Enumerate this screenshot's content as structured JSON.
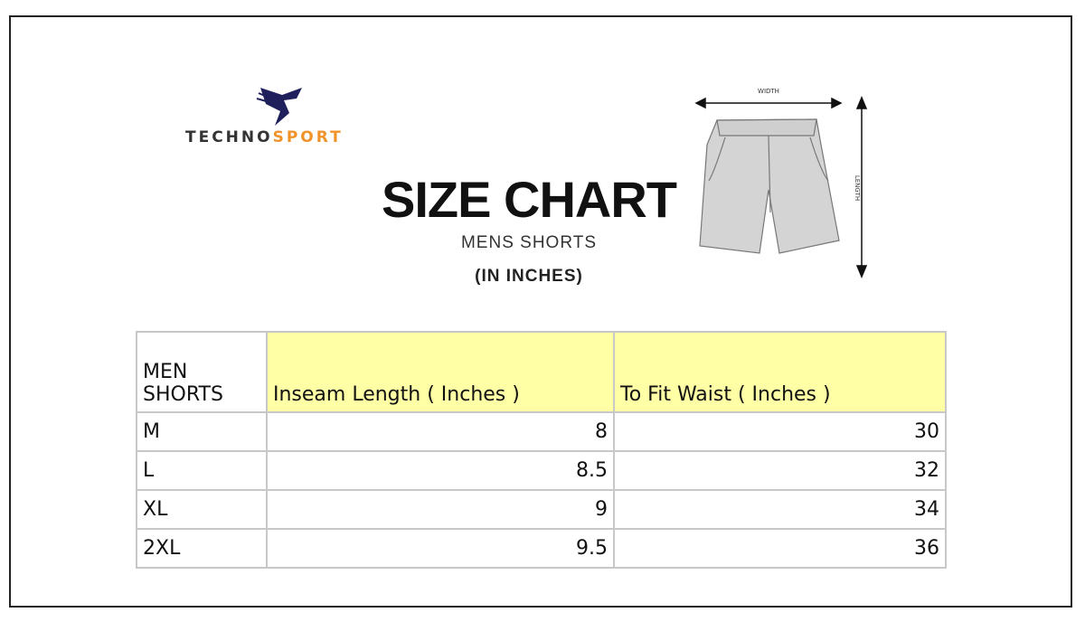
{
  "brand": {
    "part1": "TECHNO",
    "part2": "SPORT",
    "colors": {
      "dark": "#333333",
      "accent": "#f0932b",
      "logo": "#1f1f5c"
    }
  },
  "title": "SIZE CHART",
  "subtitle": "MENS SHORTS",
  "unit": "(IN INCHES)",
  "diagram": {
    "width_label": "WIDTH",
    "length_label": "LENGTH"
  },
  "table": {
    "headers": [
      "MEN SHORTS",
      "Inseam Length ( Inches )",
      "To Fit Waist ( Inches )"
    ],
    "header_color": "#ffffa6",
    "rows": [
      [
        "M",
        "8",
        "30"
      ],
      [
        "L",
        "8.5",
        "32"
      ],
      [
        "XL",
        "9",
        "34"
      ],
      [
        "2XL",
        "9.5",
        "36"
      ]
    ]
  }
}
